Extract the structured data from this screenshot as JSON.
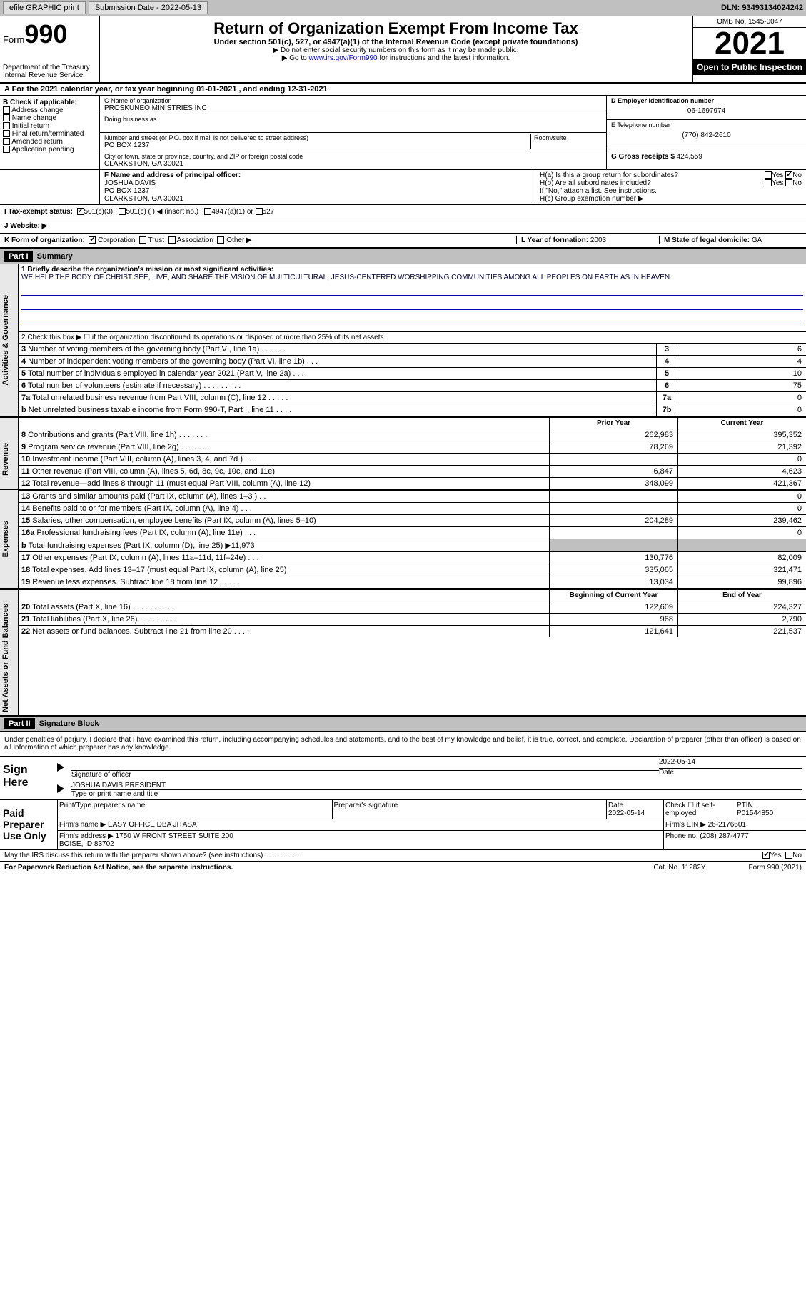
{
  "topbar": {
    "efile": "efile GRAPHIC print",
    "sub_date_lbl": "Submission Date - 2022-05-13",
    "dln": "DLN: 93493134024242"
  },
  "header": {
    "form_label": "Form",
    "form_num": "990",
    "dept": "Department of the Treasury\nInternal Revenue Service",
    "title": "Return of Organization Exempt From Income Tax",
    "sub1": "Under section 501(c), 527, or 4947(a)(1) of the Internal Revenue Code (except private foundations)",
    "sub2": "▶ Do not enter social security numbers on this form as it may be made public.",
    "sub3_pre": "▶ Go to ",
    "sub3_link": "www.irs.gov/Form990",
    "sub3_post": " for instructions and the latest information.",
    "omb": "OMB No. 1545-0047",
    "year": "2021",
    "inspect": "Open to Public Inspection"
  },
  "line_a": "A For the 2021 calendar year, or tax year beginning 01-01-2021   , and ending 12-31-2021",
  "b": {
    "hdr": "B Check if applicable:",
    "addr": "Address change",
    "name": "Name change",
    "init": "Initial return",
    "final": "Final return/terminated",
    "amend": "Amended return",
    "app": "Application pending"
  },
  "c": {
    "name_lbl": "C Name of organization",
    "name": "PROSKUNEO MINISTRIES INC",
    "dba_lbl": "Doing business as",
    "street_lbl": "Number and street (or P.O. box if mail is not delivered to street address)",
    "room_lbl": "Room/suite",
    "street": "PO BOX 1237",
    "city_lbl": "City or town, state or province, country, and ZIP or foreign postal code",
    "city": "CLARKSTON, GA  30021"
  },
  "d": {
    "ein_lbl": "D Employer identification number",
    "ein": "06-1697974",
    "tel_lbl": "E Telephone number",
    "tel": "(770) 842-2610",
    "gross_lbl": "G Gross receipts $",
    "gross": "424,559"
  },
  "f": {
    "lbl": "F Name and address of principal officer:",
    "name": "JOSHUA DAVIS",
    "addr1": "PO BOX 1237",
    "addr2": "CLARKSTON, GA  30021"
  },
  "h": {
    "a": "H(a) Is this a group return for subordinates?",
    "b": "H(b) Are all subordinates included?",
    "b2": "If \"No,\" attach a list. See instructions.",
    "c": "H(c) Group exemption number ▶",
    "yes": "Yes",
    "no": "No"
  },
  "i": {
    "lbl": "I Tax-exempt status:",
    "o1": "501(c)(3)",
    "o2": "501(c) (  ) ◀ (insert no.)",
    "o3": "4947(a)(1) or",
    "o4": "527"
  },
  "j": {
    "lbl": "J Website: ▶"
  },
  "k": {
    "lbl": "K Form of organization:",
    "corp": "Corporation",
    "trust": "Trust",
    "assoc": "Association",
    "other": "Other ▶"
  },
  "l": {
    "lbl": "L Year of formation:",
    "val": "2003"
  },
  "m": {
    "lbl": "M State of legal domicile:",
    "val": "GA"
  },
  "part1": {
    "hdr": "Part I",
    "title": "Summary"
  },
  "summary": {
    "q1_lbl": "1 Briefly describe the organization's mission or most significant activities:",
    "q1": "WE HELP THE BODY OF CHRIST SEE, LIVE, AND SHARE THE VISION OF MULTICULTURAL, JESUS-CENTERED WORSHIPPING COMMUNITIES AMONG ALL PEOPLES ON EARTH AS IN HEAVEN.",
    "q2": "2 Check this box ▶ ☐ if the organization discontinued its operations or disposed of more than 25% of its net assets.",
    "sec_ag": "Activities & Governance",
    "sec_rev": "Revenue",
    "sec_exp": "Expenses",
    "sec_na": "Net Assets or Fund Balances",
    "rows_ag": [
      {
        "n": "3",
        "lbl": "Number of voting members of the governing body (Part VI, line 1a)   .   .   .   .   .   .",
        "box": "3",
        "v": "6"
      },
      {
        "n": "4",
        "lbl": "Number of independent voting members of the governing body (Part VI, line 1b)   .   .   .",
        "box": "4",
        "v": "4"
      },
      {
        "n": "5",
        "lbl": "Total number of individuals employed in calendar year 2021 (Part V, line 2a)   .   .   .",
        "box": "5",
        "v": "10"
      },
      {
        "n": "6",
        "lbl": "Total number of volunteers (estimate if necessary)   .   .   .   .   .   .   .   .   .",
        "box": "6",
        "v": "75"
      },
      {
        "n": "7a",
        "lbl": "Total unrelated business revenue from Part VIII, column (C), line 12   .   .   .   .   .",
        "box": "7a",
        "v": "0"
      },
      {
        "n": "b",
        "lbl": "Net unrelated business taxable income from Form 990-T, Part I, line 11   .   .   .   .",
        "box": "7b",
        "v": "0"
      }
    ],
    "hdr_prior": "Prior Year",
    "hdr_curr": "Current Year",
    "rows_rev": [
      {
        "n": "8",
        "lbl": "Contributions and grants (Part VIII, line 1h)   .   .   .   .   .   .   .",
        "py": "262,983",
        "cy": "395,352"
      },
      {
        "n": "9",
        "lbl": "Program service revenue (Part VIII, line 2g)   .   .   .   .   .   .   .",
        "py": "78,269",
        "cy": "21,392"
      },
      {
        "n": "10",
        "lbl": "Investment income (Part VIII, column (A), lines 3, 4, and 7d )   .   .   .",
        "py": "",
        "cy": "0"
      },
      {
        "n": "11",
        "lbl": "Other revenue (Part VIII, column (A), lines 5, 6d, 8c, 9c, 10c, and 11e)",
        "py": "6,847",
        "cy": "4,623"
      },
      {
        "n": "12",
        "lbl": "Total revenue—add lines 8 through 11 (must equal Part VIII, column (A), line 12)",
        "py": "348,099",
        "cy": "421,367"
      }
    ],
    "rows_exp": [
      {
        "n": "13",
        "lbl": "Grants and similar amounts paid (Part IX, column (A), lines 1–3 )   .   .",
        "py": "",
        "cy": "0"
      },
      {
        "n": "14",
        "lbl": "Benefits paid to or for members (Part IX, column (A), line 4)   .   .   .",
        "py": "",
        "cy": "0"
      },
      {
        "n": "15",
        "lbl": "Salaries, other compensation, employee benefits (Part IX, column (A), lines 5–10)",
        "py": "204,289",
        "cy": "239,462"
      },
      {
        "n": "16a",
        "lbl": "Professional fundraising fees (Part IX, column (A), line 11e)   .   .   .",
        "py": "",
        "cy": "0"
      },
      {
        "n": "b",
        "lbl": "Total fundraising expenses (Part IX, column (D), line 25) ▶11,973",
        "py": "GREY",
        "cy": "GREY"
      },
      {
        "n": "17",
        "lbl": "Other expenses (Part IX, column (A), lines 11a–11d, 11f–24e)   .   .   .",
        "py": "130,776",
        "cy": "82,009"
      },
      {
        "n": "18",
        "lbl": "Total expenses. Add lines 13–17 (must equal Part IX, column (A), line 25)",
        "py": "335,065",
        "cy": "321,471"
      },
      {
        "n": "19",
        "lbl": "Revenue less expenses. Subtract line 18 from line 12   .   .   .   .   .",
        "py": "13,034",
        "cy": "99,896"
      }
    ],
    "hdr_beg": "Beginning of Current Year",
    "hdr_end": "End of Year",
    "rows_na": [
      {
        "n": "20",
        "lbl": "Total assets (Part X, line 16)   .   .   .   .   .   .   .   .   .   .",
        "py": "122,609",
        "cy": "224,327"
      },
      {
        "n": "21",
        "lbl": "Total liabilities (Part X, line 26)   .   .   .   .   .   .   .   .   .",
        "py": "968",
        "cy": "2,790"
      },
      {
        "n": "22",
        "lbl": "Net assets or fund balances. Subtract line 21 from line 20   .   .   .   .",
        "py": "121,641",
        "cy": "221,537"
      }
    ]
  },
  "part2": {
    "hdr": "Part II",
    "title": "Signature Block"
  },
  "sig": {
    "decl": "Under penalties of perjury, I declare that I have examined this return, including accompanying schedules and statements, and to the best of my knowledge and belief, it is true, correct, and complete. Declaration of preparer (other than officer) is based on all information of which preparer has any knowledge.",
    "sign_here": "Sign Here",
    "sig_officer": "Signature of officer",
    "date1": "2022-05-14",
    "name_title": "JOSHUA DAVIS  PRESIDENT",
    "type_name": "Type or print name and title",
    "paid": "Paid Preparer Use Only",
    "print_lbl": "Print/Type preparer's name",
    "psig_lbl": "Preparer's signature",
    "date_lbl": "Date",
    "date2": "2022-05-14",
    "check_self": "Check ☐ if self-employed",
    "ptin_lbl": "PTIN",
    "ptin": "P01544850",
    "firm_name_lbl": "Firm's name    ▶",
    "firm_name": "EASY OFFICE DBA JITASA",
    "firm_ein_lbl": "Firm's EIN ▶",
    "firm_ein": "26-2176601",
    "firm_addr_lbl": "Firm's address ▶",
    "firm_addr": "1750 W FRONT STREET SUITE 200\nBOISE, ID  83702",
    "phone_lbl": "Phone no.",
    "phone": "(208) 287-4777",
    "discuss": "May the IRS discuss this return with the preparer shown above? (see instructions)   .   .   .   .   .   .   .   .   .",
    "yes": "Yes",
    "no": "No"
  },
  "footer": {
    "pra": "For Paperwork Reduction Act Notice, see the separate instructions.",
    "cat": "Cat. No. 11282Y",
    "form": "Form 990 (2021)"
  }
}
